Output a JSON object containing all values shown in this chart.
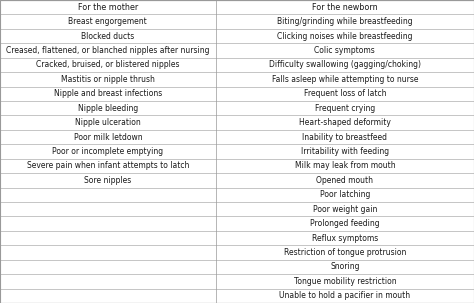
{
  "col1_header": "For the mother",
  "col2_header": "For the newborn",
  "col1_items": [
    "Breast engorgement",
    "Blocked ducts",
    "Creased, flattened, or blanched nipples after nursing",
    "Cracked, bruised, or blistered nipples",
    "Mastitis or nipple thrush",
    "Nipple and breast infections",
    "Nipple bleeding",
    "Nipple ulceration",
    "Poor milk letdown",
    "Poor or incomplete emptying",
    "Severe pain when infant attempts to latch",
    "Sore nipples",
    "",
    "",
    "",
    "",
    "",
    "",
    "",
    ""
  ],
  "col2_items": [
    "Biting/grinding while breastfeeding",
    "Clicking noises while breastfeeding",
    "Colic symptoms",
    "Difficulty swallowing (gagging/choking)",
    "Falls asleep while attempting to nurse",
    "Frequent loss of latch",
    "Frequent crying",
    "Heart-shaped deformity",
    "Inability to breastfeed",
    "Irritability with feeding",
    "Milk may leak from mouth",
    "Opened mouth",
    "Poor latching",
    "Poor weight gain",
    "Prolonged feeding",
    "Reflux symptoms",
    "Restriction of tongue protrusion",
    "Snoring",
    "Tongue mobility restriction",
    "Unable to hold a pacifier in mouth"
  ],
  "bg_color": "#ffffff",
  "text_color": "#1a1a1a",
  "line_color": "#999999",
  "font_size": 5.5,
  "header_font_size": 5.8,
  "col_split": 0.455,
  "total_rows": 21,
  "fig_width": 4.74,
  "fig_height": 3.03,
  "dpi": 100
}
